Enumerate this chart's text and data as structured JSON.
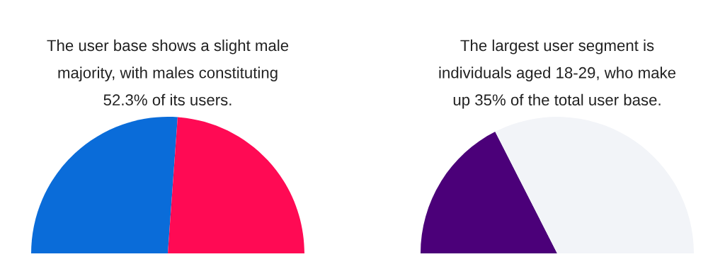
{
  "chart_data": [
    {
      "type": "pie",
      "title": "The user base shows a slight male\nmajority, with males constituting\n52.3% of its users.",
      "categories": [
        null,
        null
      ],
      "values": [
        52.3,
        47.7
      ],
      "colors": [
        "#0a6cd9",
        "#ff0a54"
      ]
    },
    {
      "type": "pie",
      "title": "The largest user segment is\nindividuals aged 18-29, who make\nup 35% of the total user base.",
      "categories": [
        null,
        null
      ],
      "values": [
        35,
        65
      ],
      "colors": [
        "#4b0079",
        "#f2f4f8"
      ]
    }
  ]
}
